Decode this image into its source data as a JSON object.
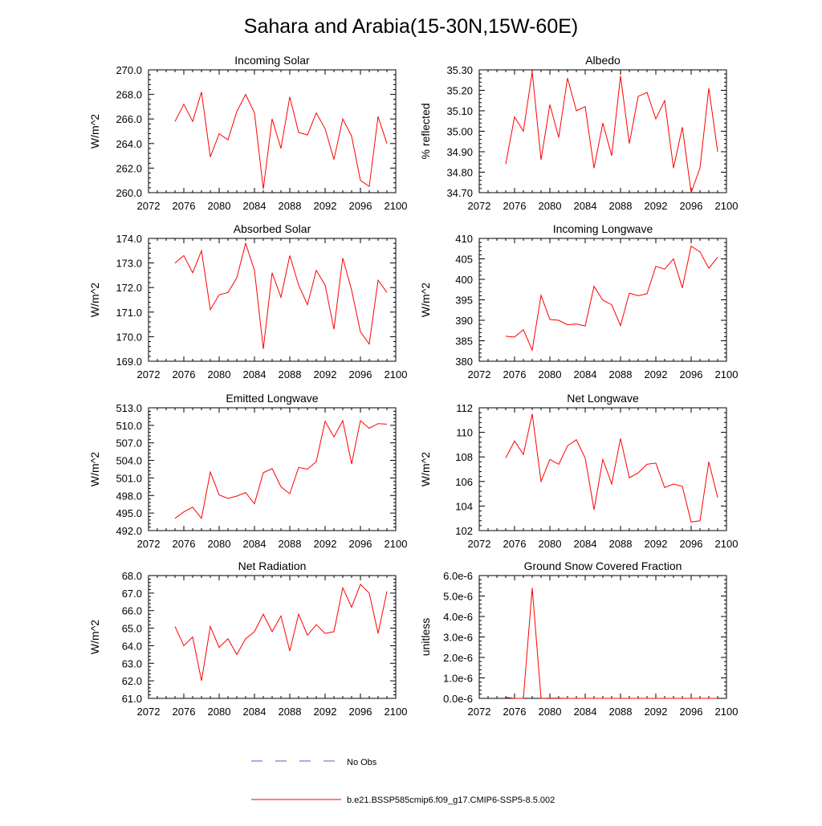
{
  "title": "Sahara and Arabia(15-30N,15W-60E)",
  "legend": {
    "items": [
      {
        "label": "No Obs",
        "color": "#5a5ad6",
        "style": "dashed"
      },
      {
        "label": "b.e21.BSSP585cmip6.f09_g17.CMIP6-SSP5-8.5.002",
        "color": "#ff0000",
        "style": "solid"
      }
    ]
  },
  "chart_data": [
    {
      "type": "line",
      "title": "Incoming Solar",
      "ylabel": "W/m^2",
      "xlim": [
        2072,
        2100
      ],
      "xticks": [
        "2072",
        "2076",
        "2080",
        "2084",
        "2088",
        "2092",
        "2096",
        "2100"
      ],
      "ylim": [
        260,
        270
      ],
      "yticks": [
        "260.0",
        "262.0",
        "264.0",
        "266.0",
        "268.0",
        "270.0"
      ],
      "x": [
        2075,
        2076,
        2077,
        2078,
        2079,
        2080,
        2081,
        2082,
        2083,
        2084,
        2085,
        2086,
        2087,
        2088,
        2089,
        2090,
        2091,
        2092,
        2093,
        2094,
        2095,
        2096,
        2097,
        2098,
        2099
      ],
      "values": [
        265.8,
        267.2,
        265.8,
        268.2,
        262.9,
        264.8,
        264.3,
        266.6,
        268.0,
        266.5,
        260.3,
        266.0,
        263.6,
        267.8,
        264.9,
        264.7,
        266.5,
        265.2,
        262.7,
        266.0,
        264.6,
        261.0,
        260.5,
        266.2,
        264.0
      ],
      "color": "#ff0000"
    },
    {
      "type": "line",
      "title": "Albedo",
      "ylabel": "% reflected",
      "xlim": [
        2072,
        2100
      ],
      "xticks": [
        "2072",
        "2076",
        "2080",
        "2084",
        "2088",
        "2092",
        "2096",
        "2100"
      ],
      "ylim": [
        34.7,
        35.3
      ],
      "yticks": [
        "34.70",
        "34.80",
        "34.90",
        "35.00",
        "35.10",
        "35.20",
        "35.30"
      ],
      "x": [
        2075,
        2076,
        2077,
        2078,
        2079,
        2080,
        2081,
        2082,
        2083,
        2084,
        2085,
        2086,
        2087,
        2088,
        2089,
        2090,
        2091,
        2092,
        2093,
        2094,
        2095,
        2096,
        2097,
        2098,
        2099
      ],
      "values": [
        34.84,
        35.07,
        35.0,
        35.29,
        34.86,
        35.13,
        34.97,
        35.26,
        35.1,
        35.12,
        34.82,
        35.04,
        34.88,
        35.27,
        34.94,
        35.17,
        35.19,
        35.06,
        35.15,
        34.82,
        35.02,
        34.7,
        34.82,
        35.21,
        34.9
      ],
      "color": "#ff0000"
    },
    {
      "type": "line",
      "title": "Absorbed Solar",
      "ylabel": "W/m^2",
      "xlim": [
        2072,
        2100
      ],
      "xticks": [
        "2072",
        "2076",
        "2080",
        "2084",
        "2088",
        "2092",
        "2096",
        "2100"
      ],
      "ylim": [
        169,
        174
      ],
      "yticks": [
        "169.0",
        "170.0",
        "171.0",
        "172.0",
        "173.0",
        "174.0"
      ],
      "x": [
        2075,
        2076,
        2077,
        2078,
        2079,
        2080,
        2081,
        2082,
        2083,
        2084,
        2085,
        2086,
        2087,
        2088,
        2089,
        2090,
        2091,
        2092,
        2093,
        2094,
        2095,
        2096,
        2097,
        2098,
        2099
      ],
      "values": [
        173.0,
        173.3,
        172.6,
        173.5,
        171.1,
        171.7,
        171.8,
        172.4,
        173.8,
        172.7,
        169.5,
        172.6,
        171.6,
        173.3,
        172.1,
        171.3,
        172.7,
        172.1,
        170.3,
        173.2,
        171.9,
        170.2,
        169.7,
        172.3,
        171.8
      ],
      "color": "#ff0000"
    },
    {
      "type": "line",
      "title": "Incoming Longwave",
      "ylabel": "W/m^2",
      "xlim": [
        2072,
        2100
      ],
      "xticks": [
        "2072",
        "2076",
        "2080",
        "2084",
        "2088",
        "2092",
        "2096",
        "2100"
      ],
      "ylim": [
        380,
        410
      ],
      "yticks": [
        "380",
        "385",
        "390",
        "395",
        "400",
        "405",
        "410"
      ],
      "x": [
        2075,
        2076,
        2077,
        2078,
        2079,
        2080,
        2081,
        2082,
        2083,
        2084,
        2085,
        2086,
        2087,
        2088,
        2089,
        2090,
        2091,
        2092,
        2093,
        2094,
        2095,
        2096,
        2097,
        2098,
        2099
      ],
      "values": [
        386.1,
        385.9,
        387.7,
        382.7,
        396.1,
        390.2,
        390.0,
        388.9,
        389.1,
        388.6,
        398.3,
        394.9,
        393.8,
        388.7,
        396.6,
        396.0,
        396.5,
        403.2,
        402.5,
        405.0,
        397.9,
        408.1,
        406.7,
        402.7,
        405.4
      ],
      "color": "#ff0000"
    },
    {
      "type": "line",
      "title": "Emitted Longwave",
      "ylabel": "W/m^2",
      "xlim": [
        2072,
        2100
      ],
      "xticks": [
        "2072",
        "2076",
        "2080",
        "2084",
        "2088",
        "2092",
        "2096",
        "2100"
      ],
      "ylim": [
        492,
        513
      ],
      "yticks": [
        "492.0",
        "495.0",
        "498.0",
        "501.0",
        "504.0",
        "507.0",
        "510.0",
        "513.0"
      ],
      "x": [
        2075,
        2076,
        2077,
        2078,
        2079,
        2080,
        2081,
        2082,
        2083,
        2084,
        2085,
        2086,
        2087,
        2088,
        2089,
        2090,
        2091,
        2092,
        2093,
        2094,
        2095,
        2096,
        2097,
        2098,
        2099
      ],
      "values": [
        494.1,
        495.2,
        496.0,
        494.1,
        502.0,
        498.1,
        497.5,
        497.9,
        498.5,
        496.6,
        501.9,
        502.6,
        499.5,
        498.3,
        502.8,
        502.5,
        503.8,
        510.7,
        508.0,
        510.8,
        503.4,
        510.8,
        509.5,
        510.3,
        510.2
      ],
      "color": "#ff0000"
    },
    {
      "type": "line",
      "title": "Net Longwave",
      "ylabel": "W/m^2",
      "xlim": [
        2072,
        2100
      ],
      "xticks": [
        "2072",
        "2076",
        "2080",
        "2084",
        "2088",
        "2092",
        "2096",
        "2100"
      ],
      "ylim": [
        102,
        112
      ],
      "yticks": [
        "102",
        "104",
        "106",
        "108",
        "110",
        "112"
      ],
      "x": [
        2075,
        2076,
        2077,
        2078,
        2079,
        2080,
        2081,
        2082,
        2083,
        2084,
        2085,
        2086,
        2087,
        2088,
        2089,
        2090,
        2091,
        2092,
        2093,
        2094,
        2095,
        2096,
        2097,
        2098,
        2099
      ],
      "values": [
        107.9,
        109.3,
        108.2,
        111.5,
        106.0,
        107.8,
        107.4,
        108.9,
        109.4,
        107.9,
        103.7,
        107.8,
        105.8,
        109.5,
        106.3,
        106.7,
        107.4,
        107.5,
        105.5,
        105.8,
        105.6,
        102.7,
        102.8,
        107.6,
        104.7
      ],
      "color": "#ff0000"
    },
    {
      "type": "line",
      "title": "Net Radiation",
      "ylabel": "W/m^2",
      "xlim": [
        2072,
        2100
      ],
      "xticks": [
        "2072",
        "2076",
        "2080",
        "2084",
        "2088",
        "2092",
        "2096",
        "2100"
      ],
      "ylim": [
        61,
        68
      ],
      "yticks": [
        "61.0",
        "62.0",
        "63.0",
        "64.0",
        "65.0",
        "66.0",
        "67.0",
        "68.0"
      ],
      "x": [
        2075,
        2076,
        2077,
        2078,
        2079,
        2080,
        2081,
        2082,
        2083,
        2084,
        2085,
        2086,
        2087,
        2088,
        2089,
        2090,
        2091,
        2092,
        2093,
        2094,
        2095,
        2096,
        2097,
        2098,
        2099
      ],
      "values": [
        65.1,
        64.0,
        64.5,
        62.0,
        65.1,
        63.9,
        64.4,
        63.5,
        64.4,
        64.8,
        65.8,
        64.8,
        65.7,
        63.7,
        65.8,
        64.6,
        65.2,
        64.7,
        64.8,
        67.3,
        66.2,
        67.5,
        67.0,
        64.7,
        67.1
      ],
      "color": "#ff0000"
    },
    {
      "type": "line",
      "title": "Ground Snow Covered Fraction",
      "ylabel": "unitless",
      "xlim": [
        2072,
        2100
      ],
      "xticks": [
        "2072",
        "2076",
        "2080",
        "2084",
        "2088",
        "2092",
        "2096",
        "2100"
      ],
      "ylim": [
        0,
        6e-06
      ],
      "yticks": [
        "0.0e-6",
        "1.0e-6",
        "2.0e-6",
        "3.0e-6",
        "4.0e-6",
        "5.0e-6",
        "6.0e-6"
      ],
      "x": [
        2075,
        2076,
        2077,
        2078,
        2079,
        2080,
        2081,
        2082,
        2083,
        2084,
        2085,
        2086,
        2087,
        2088,
        2089,
        2090,
        2091,
        2092,
        2093,
        2094,
        2095,
        2096,
        2097,
        2098,
        2099
      ],
      "values": [
        5e-08,
        0.0,
        0.0,
        5.4e-06,
        0.0,
        1e-08,
        1e-08,
        0.0,
        0.0,
        0.0,
        0.0,
        0.0,
        0.0,
        0.0,
        0.0,
        0.0,
        0.0,
        0.0,
        0.0,
        0.0,
        0.0,
        0.0,
        0.0,
        0.0,
        0.0
      ],
      "color": "#ff0000"
    }
  ]
}
